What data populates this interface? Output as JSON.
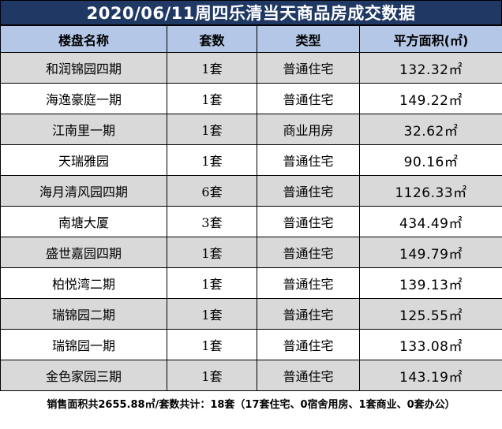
{
  "title": "2020/06/11周四乐清当天商品房成交数据",
  "headers": [
    "楼盘名称",
    "套数",
    "类型",
    "平方面积(㎡)"
  ],
  "rows": [
    {
      "name": "和润锦园四期",
      "count": "1套",
      "type": "普通住宅",
      "area": "132.32㎡"
    },
    {
      "name": "海逸豪庭一期",
      "count": "1套",
      "type": "普通住宅",
      "area": "149.22㎡"
    },
    {
      "name": "江南里一期",
      "count": "1套",
      "type": "商业用房",
      "area": "32.62㎡"
    },
    {
      "name": "天瑞雅园",
      "count": "1套",
      "type": "普通住宅",
      "area": "90.16㎡"
    },
    {
      "name": "海月清风园四期",
      "count": "6套",
      "type": "普通住宅",
      "area": "1126.33㎡"
    },
    {
      "name": "南塘大厦",
      "count": "3套",
      "type": "普通住宅",
      "area": "434.49㎡"
    },
    {
      "name": "盛世嘉园四期",
      "count": "1套",
      "type": "普通住宅",
      "area": "149.79㎡"
    },
    {
      "name": "柏悦湾二期",
      "count": "1套",
      "type": "普通住宅",
      "area": "139.13㎡"
    },
    {
      "name": "瑞锦园二期",
      "count": "1套",
      "type": "普通住宅",
      "area": "125.55㎡"
    },
    {
      "name": "瑞锦园一期",
      "count": "1套",
      "type": "普通住宅",
      "area": "133.08㎡"
    },
    {
      "name": "金色家园三期",
      "count": "1套",
      "type": "普通住宅",
      "area": "143.19㎡"
    }
  ],
  "footer": "销售面积共2655.88㎡/套数共计：18套（17套住宅、0宿舍用房、1套商业、0套办公）"
}
